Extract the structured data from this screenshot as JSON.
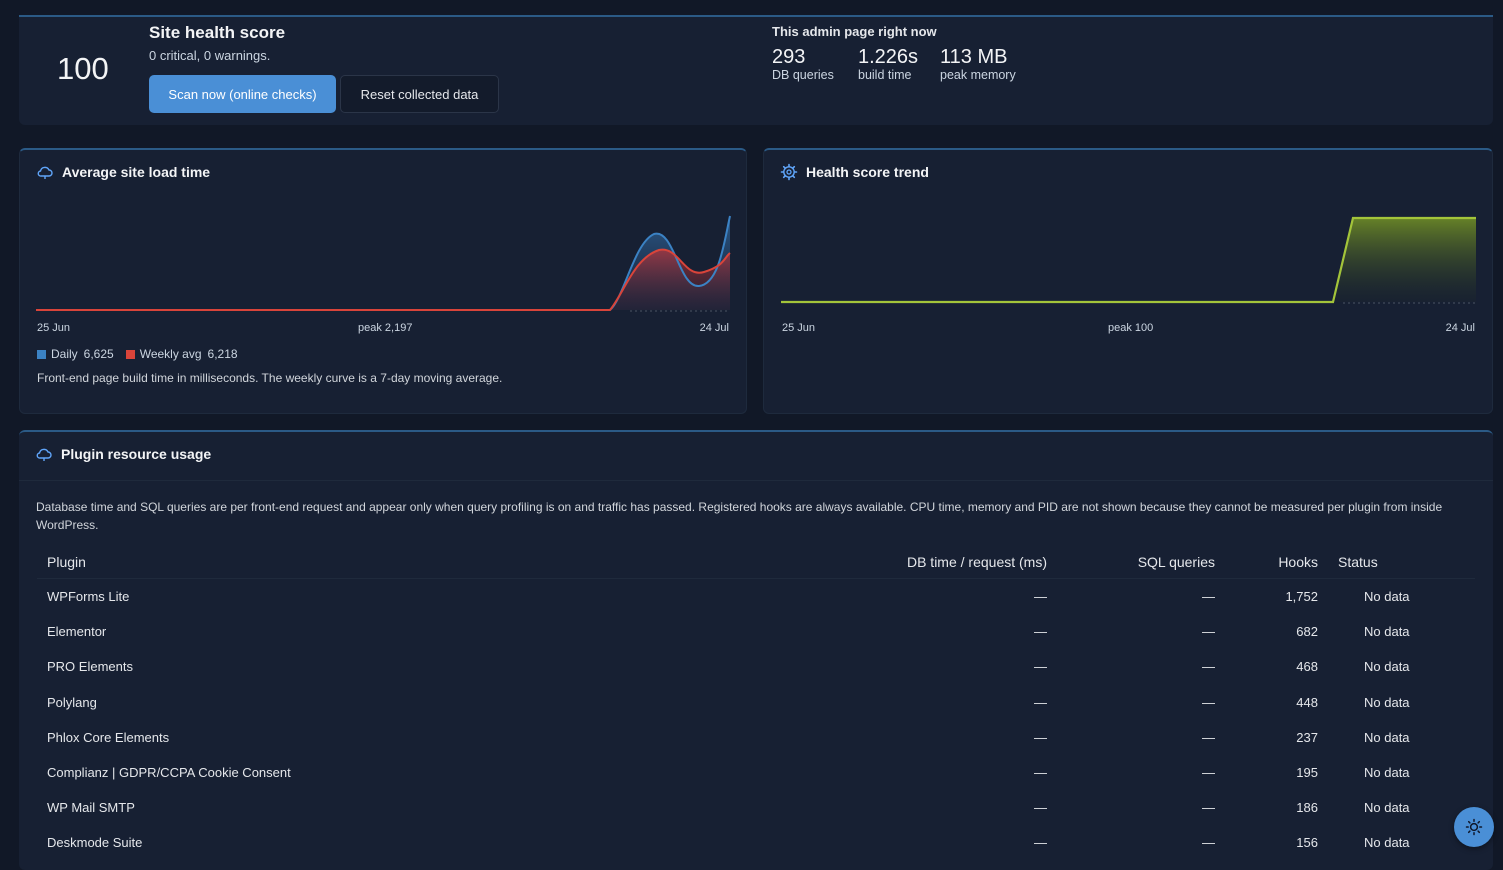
{
  "health": {
    "score": "100",
    "title": "Site health score",
    "subtitle": "0 critical, 0 warnings.",
    "scan_button": "Scan now (online checks)",
    "reset_button": "Reset collected data"
  },
  "admin_page": {
    "title": "This admin page right now",
    "metrics": [
      {
        "value": "293",
        "label": "DB queries"
      },
      {
        "value": "1.226s",
        "label": "build time"
      },
      {
        "value": "113 MB",
        "label": "peak memory"
      }
    ]
  },
  "load_time": {
    "title": "Average site load time",
    "icon": "cloud-icon",
    "x_start": "25 Jun",
    "x_end": "24 Jul",
    "peak": "peak 2,197",
    "legend": [
      {
        "label": "Daily",
        "value": "6,625",
        "color": "#3b82c4"
      },
      {
        "label": "Weekly avg",
        "value": "6,218",
        "color": "#d9443a"
      }
    ],
    "note": "Front-end page build time in milliseconds. The weekly curve is a 7-day moving average."
  },
  "trend": {
    "title": "Health score trend",
    "icon": "gear-icon",
    "x_start": "25 Jun",
    "x_end": "24 Jul",
    "peak": "peak 100",
    "color": "#a3c43a"
  },
  "plugins": {
    "title": "Plugin resource usage",
    "icon": "cloud-icon",
    "description": "Database time and SQL queries are per front-end request and appear only when query profiling is on and traffic has passed. Registered hooks are always available. CPU time, memory and PID are not shown because they cannot be measured per plugin from inside WordPress.",
    "columns": [
      "Plugin",
      "DB time / request (ms)",
      "SQL queries",
      "Hooks",
      "Status"
    ],
    "rows": [
      {
        "name": "WPForms Lite",
        "db": "—",
        "sql": "—",
        "hooks": "1,752",
        "status": "No data"
      },
      {
        "name": "Elementor",
        "db": "—",
        "sql": "—",
        "hooks": "682",
        "status": "No data"
      },
      {
        "name": "PRO Elements",
        "db": "—",
        "sql": "—",
        "hooks": "468",
        "status": "No data"
      },
      {
        "name": "Polylang",
        "db": "—",
        "sql": "—",
        "hooks": "448",
        "status": "No data"
      },
      {
        "name": "Phlox Core Elements",
        "db": "—",
        "sql": "—",
        "hooks": "237",
        "status": "No data"
      },
      {
        "name": "Complianz | GDPR/CCPA Cookie Consent",
        "db": "—",
        "sql": "—",
        "hooks": "195",
        "status": "No data"
      },
      {
        "name": "WP Mail SMTP",
        "db": "—",
        "sql": "—",
        "hooks": "186",
        "status": "No data"
      },
      {
        "name": "Deskmode Suite",
        "db": "—",
        "sql": "—",
        "hooks": "156",
        "status": "No data"
      }
    ]
  },
  "theme_toggle": {
    "icon": "sun-icon"
  }
}
